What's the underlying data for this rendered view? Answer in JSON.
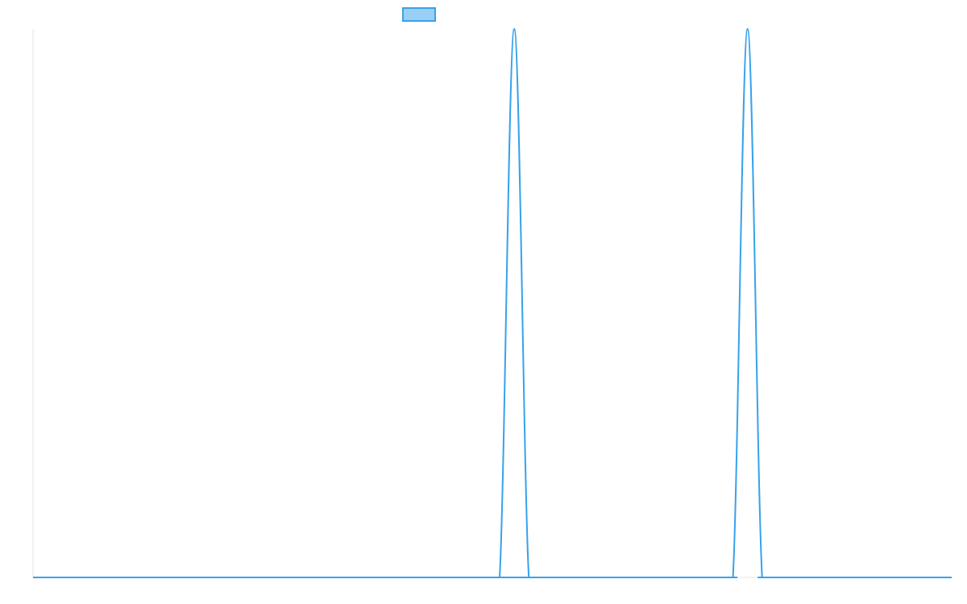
{
  "chart_data": {
    "type": "line",
    "title": "",
    "xlabel": "",
    "ylabel": "",
    "grid": false,
    "legend": {
      "position": "top-center",
      "entries": [
        ""
      ]
    },
    "x": [
      0,
      31,
      32,
      33,
      34,
      35,
      47,
      48,
      49,
      50,
      51,
      63
    ],
    "series": [
      {
        "name": "",
        "color": "#36a2eb",
        "fill": "#9ad0f5",
        "values": [
          0,
          0,
          0,
          1,
          0,
          0,
          0,
          0,
          1,
          0,
          0,
          0
        ]
      }
    ],
    "xlim": [
      0,
      63
    ],
    "ylim": [
      0,
      1
    ]
  }
}
